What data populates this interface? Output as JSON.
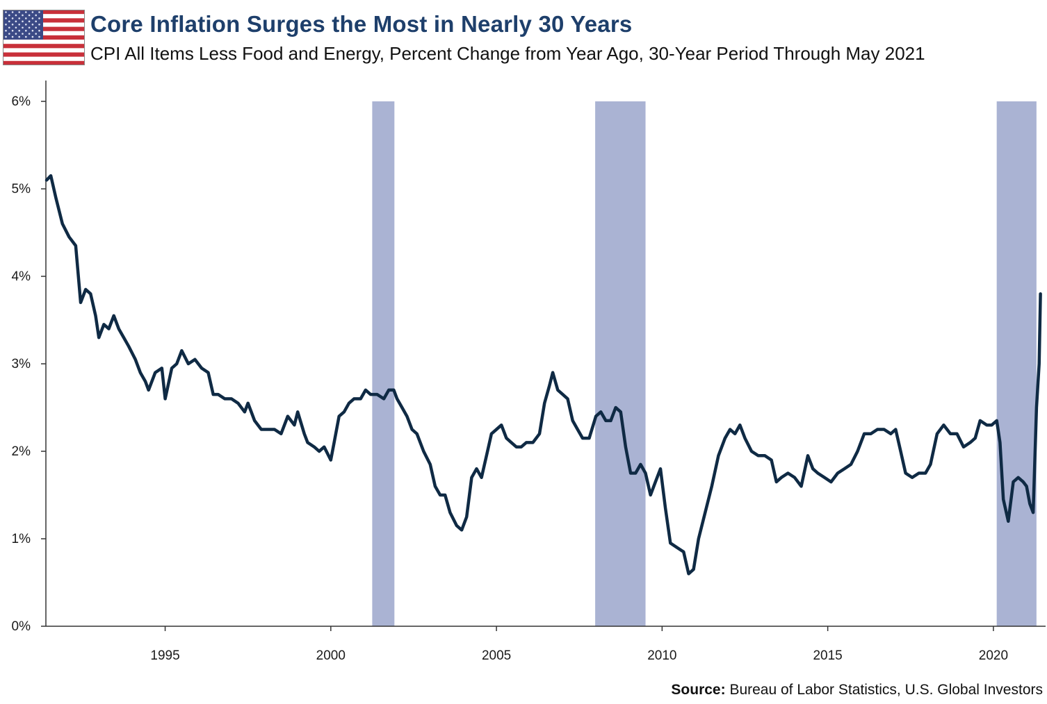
{
  "header": {
    "title": "Core Inflation Surges the Most in Nearly 30 Years",
    "subtitle": "CPI All Items Less Food and Energy, Percent Change from Year Ago, 30-Year Period Through May 2021",
    "flag_icon": "us-flag-icon"
  },
  "footer": {
    "source_label": "Source:",
    "source_text": " Bureau of Labor Statistics, U.S. Global Investors"
  },
  "colors": {
    "line": "#0f2a44",
    "recession_band": "#aab3d3",
    "title": "#1e3f6b",
    "axis": "#333333"
  },
  "chart_data": {
    "type": "line",
    "title": "Core Inflation Surges the Most in Nearly 30 Years",
    "subtitle": "CPI All Items Less Food and Energy, Percent Change from Year Ago, 30-Year Period Through May 2021",
    "xlabel": "",
    "ylabel": "",
    "xlim": [
      1991.4,
      2021.45
    ],
    "ylim": [
      0,
      6
    ],
    "y_ticks": [
      0,
      1,
      2,
      3,
      4,
      5,
      6
    ],
    "y_tick_labels": [
      "0%",
      "1%",
      "2%",
      "3%",
      "4%",
      "5%",
      "6%"
    ],
    "x_ticks": [
      1995,
      2000,
      2005,
      2010,
      2015,
      2020
    ],
    "x_tick_labels": [
      "1995",
      "2000",
      "2005",
      "2010",
      "2015",
      "2020"
    ],
    "grid": false,
    "legend": "none",
    "recession_bands": [
      {
        "start": 2001.25,
        "end": 2001.92
      },
      {
        "start": 2007.98,
        "end": 2009.5
      },
      {
        "start": 2020.1,
        "end": 2021.3
      }
    ],
    "series": [
      {
        "values": [
          [
            1991.42,
            5.1
          ],
          [
            1991.55,
            5.15
          ],
          [
            1991.7,
            4.9
          ],
          [
            1991.9,
            4.6
          ],
          [
            1992.1,
            4.45
          ],
          [
            1992.3,
            4.35
          ],
          [
            1992.45,
            3.7
          ],
          [
            1992.6,
            3.85
          ],
          [
            1992.75,
            3.8
          ],
          [
            1992.9,
            3.55
          ],
          [
            1993.0,
            3.3
          ],
          [
            1993.15,
            3.45
          ],
          [
            1993.3,
            3.4
          ],
          [
            1993.45,
            3.55
          ],
          [
            1993.6,
            3.4
          ],
          [
            1993.75,
            3.3
          ],
          [
            1993.9,
            3.2
          ],
          [
            1994.1,
            3.05
          ],
          [
            1994.25,
            2.9
          ],
          [
            1994.4,
            2.8
          ],
          [
            1994.5,
            2.7
          ],
          [
            1994.7,
            2.9
          ],
          [
            1994.9,
            2.95
          ],
          [
            1995.0,
            2.6
          ],
          [
            1995.2,
            2.95
          ],
          [
            1995.35,
            3.0
          ],
          [
            1995.5,
            3.15
          ],
          [
            1995.7,
            3.0
          ],
          [
            1995.9,
            3.05
          ],
          [
            1996.1,
            2.95
          ],
          [
            1996.3,
            2.9
          ],
          [
            1996.45,
            2.65
          ],
          [
            1996.6,
            2.65
          ],
          [
            1996.8,
            2.6
          ],
          [
            1997.0,
            2.6
          ],
          [
            1997.2,
            2.55
          ],
          [
            1997.4,
            2.45
          ],
          [
            1997.5,
            2.55
          ],
          [
            1997.7,
            2.35
          ],
          [
            1997.9,
            2.25
          ],
          [
            1998.1,
            2.25
          ],
          [
            1998.3,
            2.25
          ],
          [
            1998.5,
            2.2
          ],
          [
            1998.7,
            2.4
          ],
          [
            1998.9,
            2.3
          ],
          [
            1999.0,
            2.45
          ],
          [
            1999.2,
            2.2
          ],
          [
            1999.3,
            2.1
          ],
          [
            1999.5,
            2.05
          ],
          [
            1999.65,
            2.0
          ],
          [
            1999.8,
            2.05
          ],
          [
            2000.0,
            1.9
          ],
          [
            2000.1,
            2.1
          ],
          [
            2000.25,
            2.4
          ],
          [
            2000.4,
            2.45
          ],
          [
            2000.55,
            2.55
          ],
          [
            2000.7,
            2.6
          ],
          [
            2000.9,
            2.6
          ],
          [
            2001.05,
            2.7
          ],
          [
            2001.2,
            2.65
          ],
          [
            2001.4,
            2.65
          ],
          [
            2001.6,
            2.6
          ],
          [
            2001.75,
            2.7
          ],
          [
            2001.9,
            2.7
          ],
          [
            2002.0,
            2.6
          ],
          [
            2002.15,
            2.5
          ],
          [
            2002.3,
            2.4
          ],
          [
            2002.45,
            2.25
          ],
          [
            2002.6,
            2.2
          ],
          [
            2002.8,
            2.0
          ],
          [
            2003.0,
            1.85
          ],
          [
            2003.15,
            1.6
          ],
          [
            2003.3,
            1.5
          ],
          [
            2003.45,
            1.5
          ],
          [
            2003.6,
            1.3
          ],
          [
            2003.8,
            1.15
          ],
          [
            2003.95,
            1.1
          ],
          [
            2004.1,
            1.25
          ],
          [
            2004.25,
            1.7
          ],
          [
            2004.4,
            1.8
          ],
          [
            2004.55,
            1.7
          ],
          [
            2004.7,
            1.95
          ],
          [
            2004.85,
            2.2
          ],
          [
            2005.0,
            2.25
          ],
          [
            2005.15,
            2.3
          ],
          [
            2005.3,
            2.15
          ],
          [
            2005.45,
            2.1
          ],
          [
            2005.6,
            2.05
          ],
          [
            2005.75,
            2.05
          ],
          [
            2005.9,
            2.1
          ],
          [
            2006.1,
            2.1
          ],
          [
            2006.3,
            2.2
          ],
          [
            2006.45,
            2.55
          ],
          [
            2006.6,
            2.75
          ],
          [
            2006.7,
            2.9
          ],
          [
            2006.85,
            2.7
          ],
          [
            2007.0,
            2.65
          ],
          [
            2007.15,
            2.6
          ],
          [
            2007.3,
            2.35
          ],
          [
            2007.45,
            2.25
          ],
          [
            2007.6,
            2.15
          ],
          [
            2007.8,
            2.15
          ],
          [
            2008.0,
            2.4
          ],
          [
            2008.15,
            2.45
          ],
          [
            2008.3,
            2.35
          ],
          [
            2008.45,
            2.35
          ],
          [
            2008.6,
            2.5
          ],
          [
            2008.75,
            2.45
          ],
          [
            2008.9,
            2.05
          ],
          [
            2009.05,
            1.75
          ],
          [
            2009.2,
            1.75
          ],
          [
            2009.35,
            1.85
          ],
          [
            2009.5,
            1.75
          ],
          [
            2009.65,
            1.5
          ],
          [
            2009.8,
            1.65
          ],
          [
            2009.95,
            1.8
          ],
          [
            2010.1,
            1.35
          ],
          [
            2010.25,
            0.95
          ],
          [
            2010.45,
            0.9
          ],
          [
            2010.65,
            0.85
          ],
          [
            2010.8,
            0.6
          ],
          [
            2010.95,
            0.65
          ],
          [
            2011.1,
            1.0
          ],
          [
            2011.3,
            1.3
          ],
          [
            2011.5,
            1.6
          ],
          [
            2011.7,
            1.95
          ],
          [
            2011.9,
            2.15
          ],
          [
            2012.05,
            2.25
          ],
          [
            2012.2,
            2.2
          ],
          [
            2012.35,
            2.3
          ],
          [
            2012.5,
            2.15
          ],
          [
            2012.7,
            2.0
          ],
          [
            2012.9,
            1.95
          ],
          [
            2013.1,
            1.95
          ],
          [
            2013.3,
            1.9
          ],
          [
            2013.45,
            1.65
          ],
          [
            2013.6,
            1.7
          ],
          [
            2013.8,
            1.75
          ],
          [
            2014.0,
            1.7
          ],
          [
            2014.2,
            1.6
          ],
          [
            2014.4,
            1.95
          ],
          [
            2014.55,
            1.8
          ],
          [
            2014.7,
            1.75
          ],
          [
            2014.9,
            1.7
          ],
          [
            2015.1,
            1.65
          ],
          [
            2015.3,
            1.75
          ],
          [
            2015.5,
            1.8
          ],
          [
            2015.7,
            1.85
          ],
          [
            2015.9,
            2.0
          ],
          [
            2016.1,
            2.2
          ],
          [
            2016.3,
            2.2
          ],
          [
            2016.5,
            2.25
          ],
          [
            2016.7,
            2.25
          ],
          [
            2016.9,
            2.2
          ],
          [
            2017.05,
            2.25
          ],
          [
            2017.2,
            2.0
          ],
          [
            2017.35,
            1.75
          ],
          [
            2017.55,
            1.7
          ],
          [
            2017.75,
            1.75
          ],
          [
            2017.95,
            1.75
          ],
          [
            2018.1,
            1.85
          ],
          [
            2018.3,
            2.2
          ],
          [
            2018.5,
            2.3
          ],
          [
            2018.7,
            2.2
          ],
          [
            2018.9,
            2.2
          ],
          [
            2019.1,
            2.05
          ],
          [
            2019.3,
            2.1
          ],
          [
            2019.45,
            2.15
          ],
          [
            2019.6,
            2.35
          ],
          [
            2019.8,
            2.3
          ],
          [
            2019.95,
            2.3
          ],
          [
            2020.1,
            2.35
          ],
          [
            2020.2,
            2.1
          ],
          [
            2020.3,
            1.45
          ],
          [
            2020.45,
            1.2
          ],
          [
            2020.6,
            1.65
          ],
          [
            2020.75,
            1.7
          ],
          [
            2020.9,
            1.65
          ],
          [
            2021.0,
            1.6
          ],
          [
            2021.1,
            1.4
          ],
          [
            2021.2,
            1.3
          ],
          [
            2021.3,
            2.5
          ],
          [
            2021.38,
            3.0
          ],
          [
            2021.42,
            3.8
          ]
        ]
      }
    ]
  }
}
